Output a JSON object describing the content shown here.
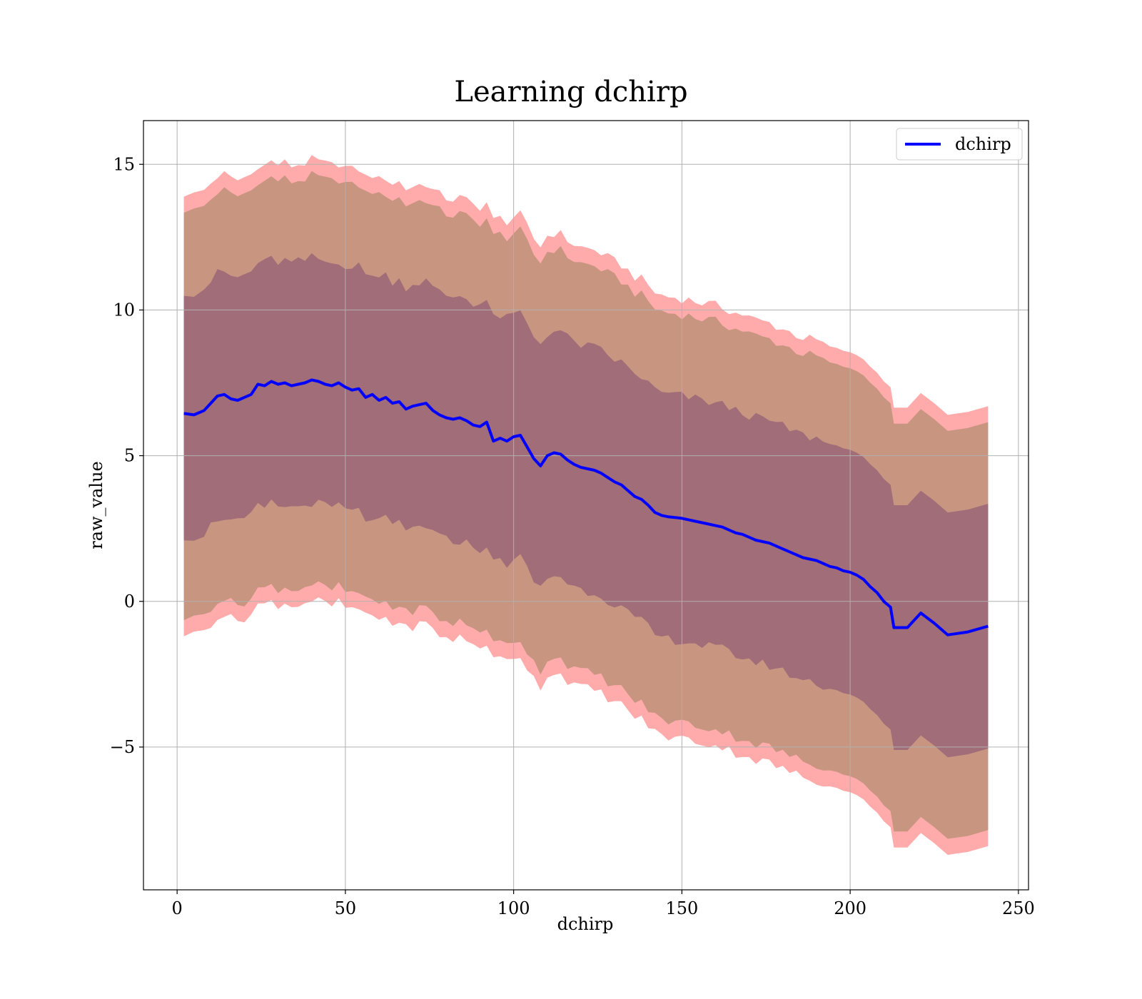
{
  "chart_data": {
    "type": "line",
    "title": "Learning dchirp",
    "xlabel": "dchirp",
    "ylabel": "raw_value",
    "xlim": [
      -10,
      253
    ],
    "ylim": [
      -9.9,
      16.5
    ],
    "xticks": [
      0,
      50,
      100,
      150,
      200,
      250
    ],
    "xtick_labels": [
      "0",
      "50",
      "100",
      "150",
      "200",
      "250"
    ],
    "yticks": [
      -5,
      0,
      5,
      10,
      15
    ],
    "ytick_labels": [
      "−5",
      "0",
      "5",
      "10",
      "15"
    ],
    "grid": true,
    "legend": {
      "position": "top-right",
      "entries": [
        {
          "label": "dchirp",
          "color": "#0000ff"
        }
      ]
    },
    "series": [
      {
        "name": "dchirp",
        "color": "#0000ff",
        "x": [
          2,
          5,
          8,
          10,
          12,
          14,
          16,
          18,
          20,
          22,
          24,
          26,
          28,
          30,
          32,
          34,
          36,
          38,
          40,
          42,
          44,
          46,
          48,
          50,
          52,
          54,
          56,
          58,
          60,
          62,
          64,
          66,
          68,
          70,
          72,
          74,
          76,
          78,
          80,
          82,
          84,
          86,
          88,
          90,
          92,
          94,
          96,
          98,
          100,
          102,
          104,
          106,
          108,
          110,
          112,
          114,
          116,
          118,
          120,
          122,
          124,
          126,
          128,
          130,
          132,
          134,
          136,
          138,
          140,
          142,
          144,
          146,
          148,
          150,
          152,
          154,
          156,
          158,
          160,
          162,
          164,
          166,
          168,
          170,
          172,
          174,
          176,
          178,
          180,
          182,
          184,
          186,
          188,
          190,
          192,
          194,
          196,
          198,
          200,
          202,
          204,
          206,
          208,
          210,
          212,
          213,
          217,
          221,
          225,
          229,
          235,
          241
        ],
        "values": [
          6.45,
          6.4,
          6.55,
          6.8,
          7.05,
          7.1,
          6.95,
          6.9,
          7.0,
          7.1,
          7.45,
          7.4,
          7.55,
          7.45,
          7.5,
          7.4,
          7.45,
          7.5,
          7.6,
          7.55,
          7.45,
          7.4,
          7.5,
          7.35,
          7.25,
          7.3,
          7.0,
          7.1,
          6.9,
          7.0,
          6.8,
          6.85,
          6.6,
          6.7,
          6.75,
          6.8,
          6.55,
          6.4,
          6.3,
          6.25,
          6.3,
          6.2,
          6.05,
          6.0,
          6.15,
          5.5,
          5.6,
          5.5,
          5.65,
          5.7,
          5.3,
          4.9,
          4.65,
          5.0,
          5.1,
          5.05,
          4.85,
          4.7,
          4.6,
          4.55,
          4.5,
          4.4,
          4.25,
          4.1,
          4.0,
          3.8,
          3.6,
          3.5,
          3.3,
          3.05,
          2.95,
          2.9,
          2.88,
          2.85,
          2.8,
          2.75,
          2.7,
          2.65,
          2.6,
          2.55,
          2.45,
          2.35,
          2.3,
          2.2,
          2.1,
          2.05,
          2.0,
          1.9,
          1.8,
          1.7,
          1.6,
          1.5,
          1.45,
          1.4,
          1.3,
          1.2,
          1.15,
          1.05,
          1.0,
          0.9,
          0.75,
          0.5,
          0.3,
          0.0,
          -0.2,
          -0.9,
          -0.9,
          -0.4,
          -0.75,
          -1.15,
          -1.05,
          -0.85
        ],
        "band_1sigma_width": 4.2,
        "band_2sigma_width": 7.0,
        "band_2sigma_outer_width": 7.55
      }
    ],
    "bands": [
      {
        "name": "outer band",
        "color": "#ff6666"
      },
      {
        "name": "2-sigma band",
        "color": "#c89580"
      },
      {
        "name": "1-sigma band",
        "color": "#a06d78"
      }
    ]
  }
}
